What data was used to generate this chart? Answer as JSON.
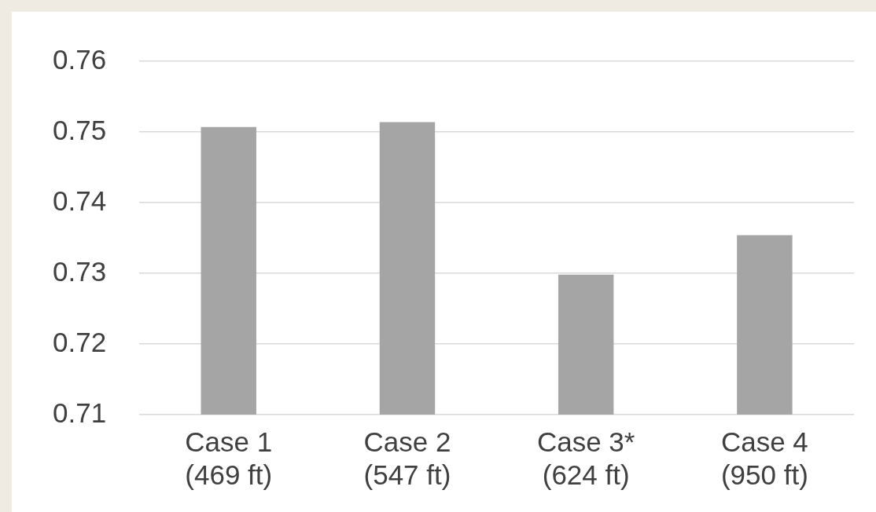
{
  "chart_data": {
    "type": "bar",
    "categories": [
      "Case 1\n(469 ft)",
      "Case 2\n(547 ft)",
      "Case 3*\n(624 ft)",
      "Case 4\n(950 ft)"
    ],
    "values": [
      0.7507,
      0.7514,
      0.7298,
      0.7354
    ],
    "color": "#a5a5a5",
    "ylim": [
      0.71,
      0.76
    ],
    "yticks": [
      0.71,
      0.72,
      0.73,
      0.74,
      0.75,
      0.76
    ],
    "grid": "y",
    "legend": false
  }
}
